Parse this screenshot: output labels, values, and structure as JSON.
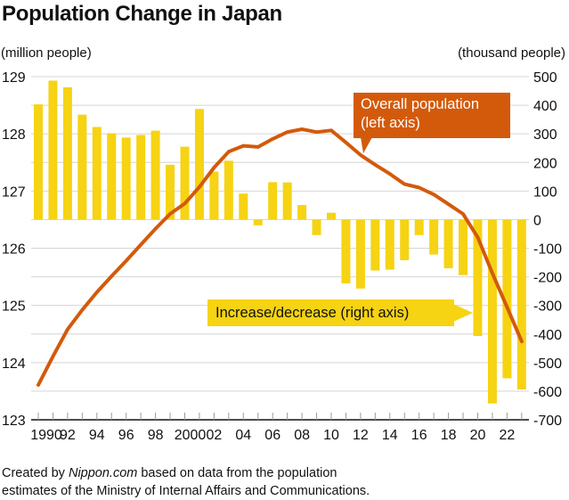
{
  "header": {
    "title": "Population Change in Japan",
    "left_unit": "(million people)",
    "right_unit": "(thousand people)"
  },
  "annotations": {
    "line_label": "Overall population (left axis)",
    "line_label_lines": [
      "Overall population",
      "(left axis)"
    ],
    "bar_label": "Increase/decrease (right axis)"
  },
  "footer": {
    "prefix": "Created by ",
    "source_site": "Nippon.com",
    "suffix": " based on data from the population",
    "line2": "estimates of the Ministry of Internal Affairs and Communications."
  },
  "colors": {
    "bar": "#f6d313",
    "line": "#d35a0b",
    "grid": "#d4d4d4",
    "axis": "#111111"
  },
  "chart_data": {
    "type": "bar+line",
    "title": "Population Change in Japan",
    "xlabel": "",
    "x": [
      1990,
      1991,
      1992,
      1993,
      1994,
      1995,
      1996,
      1997,
      1998,
      1999,
      2000,
      2001,
      2002,
      2003,
      2004,
      2005,
      2006,
      2007,
      2008,
      2009,
      2010,
      2011,
      2012,
      2013,
      2014,
      2015,
      2016,
      2017,
      2018,
      2019,
      2020,
      2021,
      2022,
      2023
    ],
    "x_tick_labels": [
      "1990",
      "92",
      "94",
      "96",
      "98",
      "2000",
      "02",
      "04",
      "06",
      "08",
      "10",
      "12",
      "14",
      "16",
      "18",
      "20",
      "22"
    ],
    "x_tick_years": [
      1990,
      1992,
      1994,
      1996,
      1998,
      2000,
      2002,
      2004,
      2006,
      2008,
      2010,
      2012,
      2014,
      2016,
      2018,
      2020,
      2022
    ],
    "left_axis": {
      "label": "(million people)",
      "ylim": [
        123,
        129
      ],
      "ticks": [
        123,
        124,
        125,
        126,
        127,
        128,
        129
      ]
    },
    "right_axis": {
      "label": "(thousand people)",
      "ylim": [
        -700,
        500
      ],
      "ticks": [
        -700,
        -600,
        -500,
        -400,
        -300,
        -200,
        -100,
        0,
        100,
        200,
        300,
        400,
        500
      ]
    },
    "grid": true,
    "series": [
      {
        "name": "Increase/decrease (right axis)",
        "type": "bar",
        "axis": "right",
        "values": [
          403,
          486,
          463,
          367,
          324,
          302,
          287,
          296,
          311,
          192,
          255,
          387,
          168,
          206,
          91,
          -20,
          131,
          130,
          51,
          -54,
          24,
          -223,
          -241,
          -178,
          -175,
          -142,
          -54,
          -122,
          -170,
          -194,
          -407,
          -643,
          -555,
          -594
        ]
      },
      {
        "name": "Overall population (left axis)",
        "type": "line",
        "axis": "left",
        "values": [
          123.61,
          124.11,
          124.58,
          124.92,
          125.23,
          125.51,
          125.78,
          126.06,
          126.34,
          126.6,
          126.78,
          127.07,
          127.41,
          127.69,
          127.79,
          127.77,
          127.91,
          128.03,
          128.08,
          128.03,
          128.06,
          127.85,
          127.63,
          127.46,
          127.3,
          127.12,
          127.06,
          126.94,
          126.77,
          126.6,
          126.19,
          125.56,
          124.97,
          124.37
        ]
      }
    ],
    "legend": "inline-callouts"
  }
}
